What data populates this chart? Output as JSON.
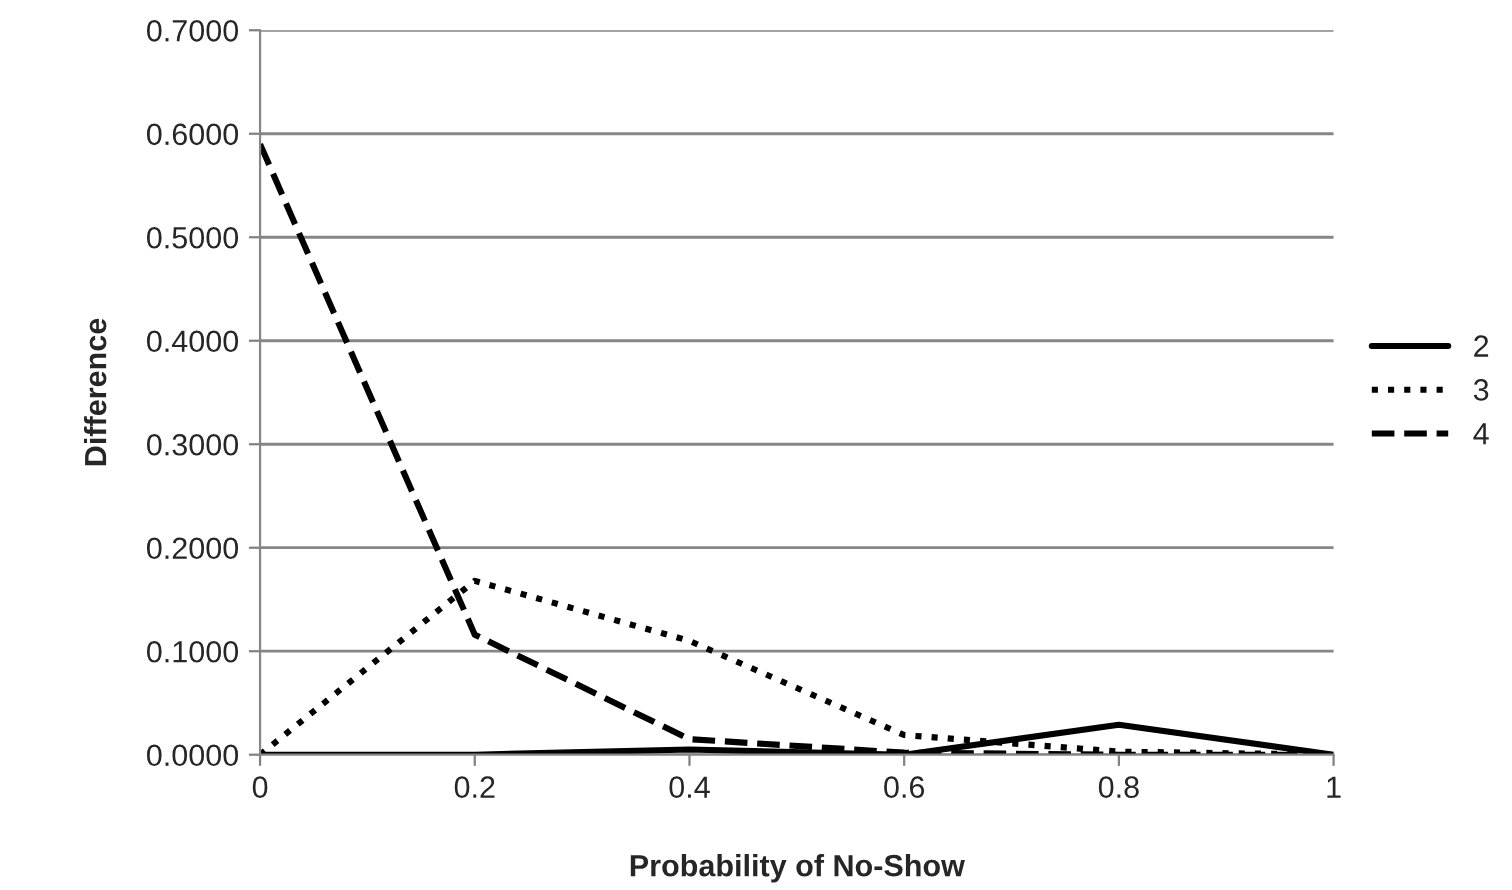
{
  "chart_data": {
    "type": "line",
    "xlabel": "Probability of No-Show",
    "ylabel": "Difference",
    "categories": [
      "0",
      "0.2",
      "0.4",
      "0.6",
      "0.8",
      "1"
    ],
    "series": [
      {
        "name": "2",
        "color": "#000000",
        "line_style": "solid",
        "values": [
          0,
          0,
          0.005,
          0,
          0.029,
          0
        ]
      },
      {
        "name": "3",
        "color": "#000000",
        "line_style": "dotted",
        "values": [
          0,
          0.168,
          0.11,
          0.019,
          0.003,
          0
        ]
      },
      {
        "name": "4",
        "color": "#000000",
        "line_style": "dashed",
        "values": [
          0.59,
          0.116,
          0.015,
          0.002,
          0,
          0
        ]
      }
    ],
    "ylim": [
      0,
      0.7
    ],
    "yticks": [
      {
        "value": 0,
        "label": "0.0000"
      },
      {
        "value": 0.1,
        "label": "0.1000"
      },
      {
        "value": 0.2,
        "label": "0.2000"
      },
      {
        "value": 0.3,
        "label": "0.3000"
      },
      {
        "value": 0.4,
        "label": "0.4000"
      },
      {
        "value": 0.5,
        "label": "0.5000"
      },
      {
        "value": 0.6,
        "label": "0.6000"
      },
      {
        "value": 0.7,
        "label": "0.7000"
      }
    ],
    "grid": "y",
    "legend": "right",
    "marker": "none"
  }
}
